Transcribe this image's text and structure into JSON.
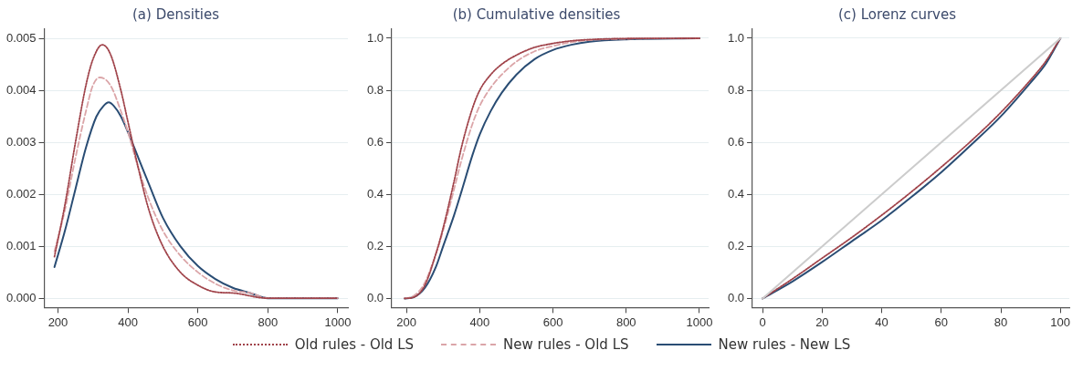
{
  "chart_data": [
    {
      "type": "line",
      "title": "(a) Densities",
      "xlim": [
        161,
        1029
      ],
      "xticks": [
        200,
        400,
        600,
        800,
        1000
      ],
      "ylim": [
        -0.00018,
        0.00518
      ],
      "yticks": [
        {
          "value": 0,
          "label": "0.000"
        },
        {
          "value": 0.001,
          "label": "0.001"
        },
        {
          "value": 0.002,
          "label": "0.002"
        },
        {
          "value": 0.003,
          "label": "0.003"
        },
        {
          "value": 0.004,
          "label": "0.004"
        },
        {
          "value": 0.005,
          "label": "0.005"
        }
      ],
      "grid": "y",
      "legend": "bottom",
      "marker": "none",
      "series": [
        {
          "name": "Old rules - Old LS",
          "color": "#a0434a",
          "line_style": "dotted",
          "x": [
            190,
            220,
            250,
            280,
            300,
            327,
            350,
            380,
            400,
            430,
            460,
            500,
            550,
            600,
            650,
            700,
            800,
            1000
          ],
          "values": [
            0.0008,
            0.0018,
            0.003,
            0.0041,
            0.0046,
            0.00488,
            0.0047,
            0.004,
            0.0034,
            0.0025,
            0.0017,
            0.001,
            0.0005,
            0.00025,
            0.00012,
            0.0001,
            0,
            0
          ]
        },
        {
          "name": "New rules - Old LS",
          "color": "#dba5a8",
          "line_style": "dashed",
          "x": [
            190,
            220,
            250,
            280,
            300,
            320,
            350,
            380,
            400,
            430,
            460,
            500,
            550,
            600,
            650,
            700,
            750,
            800,
            1000
          ],
          "values": [
            0.0009,
            0.0017,
            0.0027,
            0.0036,
            0.0041,
            0.00425,
            0.0041,
            0.0036,
            0.0032,
            0.0025,
            0.0019,
            0.0013,
            0.00082,
            0.0005,
            0.00028,
            0.00015,
            0.0001,
            0,
            0
          ]
        },
        {
          "name": "New rules - New LS",
          "color": "#2a4d74",
          "line_style": "solid",
          "x": [
            190,
            220,
            250,
            280,
            310,
            330,
            345,
            360,
            380,
            400,
            430,
            460,
            500,
            550,
            600,
            650,
            700,
            750,
            800,
            900,
            1000
          ],
          "values": [
            0.0006,
            0.0013,
            0.0021,
            0.0029,
            0.0035,
            0.0037,
            0.00377,
            0.0037,
            0.0035,
            0.0032,
            0.0027,
            0.0022,
            0.00155,
            0.001,
            0.00062,
            0.00037,
            0.0002,
            0.0001,
            0,
            0,
            0
          ]
        }
      ]
    },
    {
      "type": "line",
      "title": "(b) Cumulative densities",
      "xlim": [
        160,
        1025
      ],
      "xticks": [
        200,
        400,
        600,
        800,
        1000
      ],
      "ylim": [
        -0.035,
        1.035
      ],
      "yticks": [
        {
          "value": 0,
          "label": "0.0"
        },
        {
          "value": 0.2,
          "label": "0.2"
        },
        {
          "value": 0.4,
          "label": "0.4"
        },
        {
          "value": 0.6,
          "label": "0.6"
        },
        {
          "value": 0.8,
          "label": "0.8"
        },
        {
          "value": 1,
          "label": "1.0"
        }
      ],
      "grid": "y",
      "marker": "none",
      "series": [
        {
          "color": "#a0434a",
          "line_style": "dotted",
          "x": [
            195,
            220,
            250,
            280,
            300,
            330,
            350,
            380,
            400,
            430,
            460,
            500,
            550,
            600,
            650,
            700,
            800,
            1000
          ],
          "values": [
            0,
            0.005,
            0.05,
            0.17,
            0.27,
            0.45,
            0.58,
            0.73,
            0.8,
            0.86,
            0.9,
            0.935,
            0.965,
            0.98,
            0.99,
            0.995,
            0.999,
            1
          ]
        },
        {
          "color": "#dba5a8",
          "line_style": "dashed",
          "x": [
            195,
            220,
            250,
            280,
            300,
            330,
            350,
            380,
            400,
            430,
            460,
            500,
            550,
            600,
            650,
            700,
            800,
            1000
          ],
          "values": [
            0,
            0.01,
            0.06,
            0.17,
            0.26,
            0.42,
            0.53,
            0.67,
            0.74,
            0.81,
            0.86,
            0.91,
            0.95,
            0.97,
            0.985,
            0.993,
            0.998,
            1
          ]
        },
        {
          "color": "#2a4d74",
          "line_style": "solid",
          "x": [
            195,
            220,
            250,
            280,
            300,
            330,
            350,
            380,
            400,
            430,
            460,
            500,
            550,
            600,
            650,
            700,
            800,
            1000
          ],
          "values": [
            0,
            0.005,
            0.04,
            0.12,
            0.2,
            0.32,
            0.41,
            0.55,
            0.63,
            0.72,
            0.79,
            0.86,
            0.92,
            0.955,
            0.975,
            0.987,
            0.996,
            1
          ]
        }
      ]
    },
    {
      "type": "line",
      "title": "(c) Lorenz curves",
      "xlim": [
        -3.4,
        103
      ],
      "xticks": [
        0,
        20,
        40,
        60,
        80,
        100
      ],
      "ylim": [
        -0.035,
        1.035
      ],
      "yticks": [
        {
          "value": 0,
          "label": "0.0"
        },
        {
          "value": 0.2,
          "label": "0.2"
        },
        {
          "value": 0.4,
          "label": "0.4"
        },
        {
          "value": 0.6,
          "label": "0.6"
        },
        {
          "value": 0.8,
          "label": "0.8"
        },
        {
          "value": 1,
          "label": "1.0"
        }
      ],
      "grid": "y",
      "marker": "none",
      "series": [
        {
          "color": "#cccccc",
          "line_style": "solid",
          "x": [
            0,
            100
          ],
          "values": [
            0,
            1
          ]
        },
        {
          "color": "#a0434a",
          "line_style": "dotted",
          "x": [
            0,
            10,
            20,
            30,
            40,
            50,
            60,
            70,
            80,
            90,
            95,
            100
          ],
          "values": [
            0,
            0.075,
            0.155,
            0.235,
            0.32,
            0.41,
            0.505,
            0.605,
            0.715,
            0.84,
            0.91,
            1
          ]
        },
        {
          "color": "#2a4d74",
          "line_style": "solid",
          "x": [
            0,
            10,
            20,
            30,
            40,
            50,
            60,
            70,
            80,
            90,
            95,
            100
          ],
          "values": [
            0,
            0.065,
            0.14,
            0.22,
            0.3,
            0.39,
            0.485,
            0.59,
            0.7,
            0.83,
            0.9,
            1
          ]
        }
      ]
    }
  ]
}
